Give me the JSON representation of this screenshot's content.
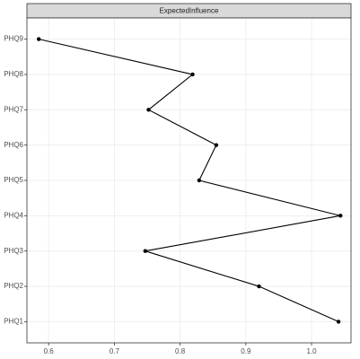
{
  "chart_data": {
    "type": "line",
    "orientation": "horizontal",
    "title": "ExpectedInfluence",
    "categories": [
      "PHQ1",
      "PHQ2",
      "PHQ3",
      "PHQ4",
      "PHQ5",
      "PHQ6",
      "PHQ7",
      "PHQ8",
      "PHQ9"
    ],
    "values": [
      1.041,
      0.92,
      0.747,
      1.044,
      0.829,
      0.855,
      0.752,
      0.819,
      0.585
    ],
    "color": "#000000",
    "xlim": [
      0.567,
      1.06
    ],
    "xticks": [
      0.6,
      0.7,
      0.8,
      0.9,
      {
        "value": 1,
        "label": "1.0"
      }
    ],
    "grid": true
  }
}
